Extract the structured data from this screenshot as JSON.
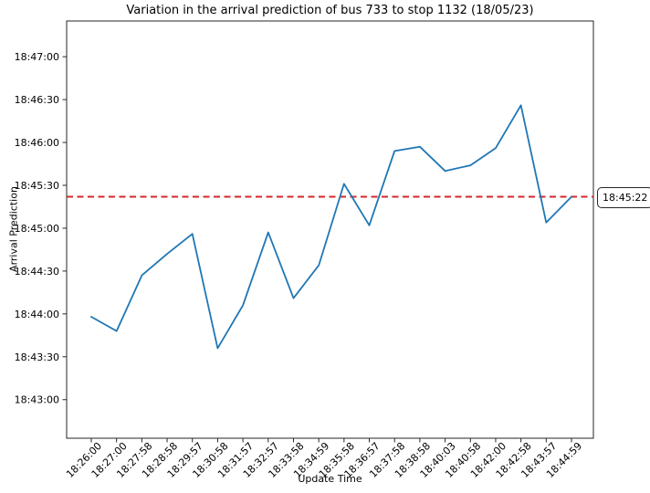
{
  "chart_data": {
    "type": "line",
    "title": "Variation in the arrival prediction of bus 733 to stop 1132 (18/05/23)",
    "xlabel": "Update Time",
    "ylabel": "Arrival Prediction",
    "categories": [
      "18:26:00",
      "18:27:00",
      "18:27:58",
      "18:28:58",
      "18:29:57",
      "18:30:58",
      "18:31:57",
      "18:32:57",
      "18:33:58",
      "18:34:59",
      "18:35:58",
      "18:36:57",
      "18:37:58",
      "18:38:58",
      "18:40:03",
      "18:40:58",
      "18:42:00",
      "18:42:58",
      "18:43:57",
      "18:44:59"
    ],
    "series": [
      {
        "name": "arrival-prediction",
        "color": "#1f77b4",
        "values": [
          "18:43:58",
          "18:43:48",
          "18:44:27",
          "18:44:42",
          "18:44:56",
          "18:43:36",
          "18:44:06",
          "18:44:57",
          "18:44:11",
          "18:44:34",
          "18:45:31",
          "18:45:02",
          "18:45:54",
          "18:45:57",
          "18:45:40",
          "18:45:44",
          "18:45:56",
          "18:46:26",
          "18:45:04",
          "18:45:22"
        ]
      }
    ],
    "reference_line": {
      "value": "18:45:22",
      "label": "18:45:22",
      "color": "#d62728",
      "style": "dashed"
    },
    "y_ticks": [
      "18:43:00",
      "18:43:30",
      "18:44:00",
      "18:44:30",
      "18:45:00",
      "18:45:30",
      "18:46:00",
      "18:46:30",
      "18:47:00"
    ],
    "ylim": [
      "18:42:33",
      "18:47:25"
    ],
    "x_tick_rotation": -45,
    "grid": false,
    "legend": false,
    "axis_color": "#262626"
  }
}
